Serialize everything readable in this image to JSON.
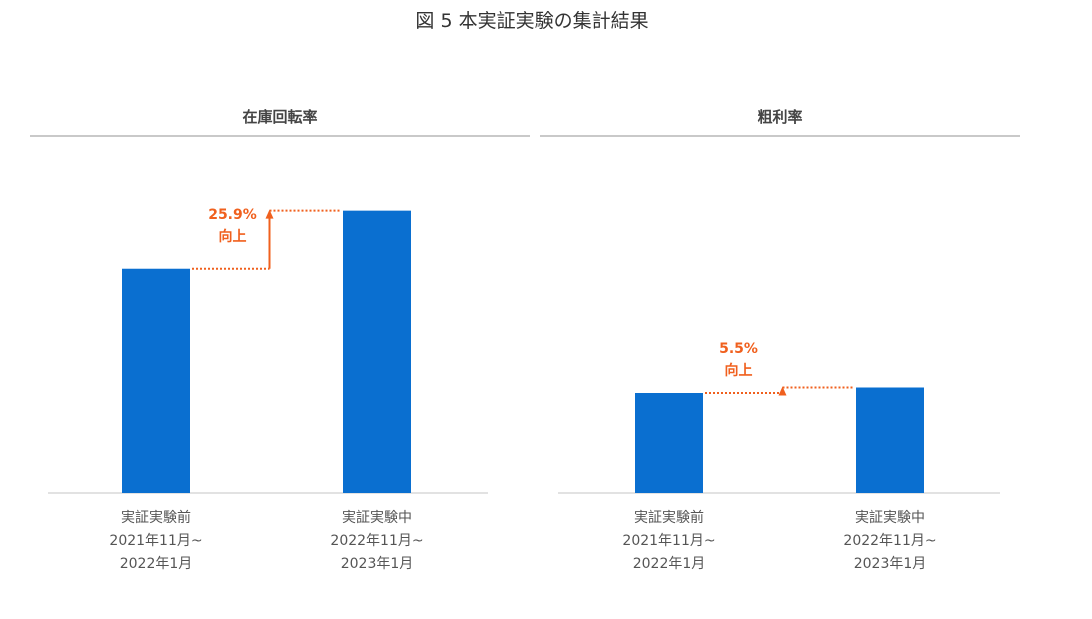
{
  "figure_title": "図 5 本実証実験の集計結果",
  "colors": {
    "bar": "#0a6fd0",
    "accent": "#f0601e",
    "baseline": "#d9d9d9"
  },
  "chart_data": [
    {
      "type": "bar",
      "title": "在庫回転率",
      "categories": [
        {
          "line1": "実証実験前",
          "line2": "2021年11月~",
          "line3": "2022年1月"
        },
        {
          "line1": "実証実験中",
          "line2": "2022年11月~",
          "line3": "2023年1月"
        }
      ],
      "values": [
        1.0,
        1.259
      ],
      "ylim": [
        0,
        1.36
      ],
      "annotation": {
        "value": "25.9%",
        "label": "向上"
      }
    },
    {
      "type": "bar",
      "title": "粗利率",
      "categories": [
        {
          "line1": "実証実験前",
          "line2": "2021年11月~",
          "line3": "2022年1月"
        },
        {
          "line1": "実証実験中",
          "line2": "2022年11月~",
          "line3": "2023年1月"
        }
      ],
      "values": [
        1.0,
        1.055
      ],
      "ylim": [
        0,
        3.05
      ],
      "annotation": {
        "value": "5.5%",
        "label": "向上"
      }
    }
  ]
}
